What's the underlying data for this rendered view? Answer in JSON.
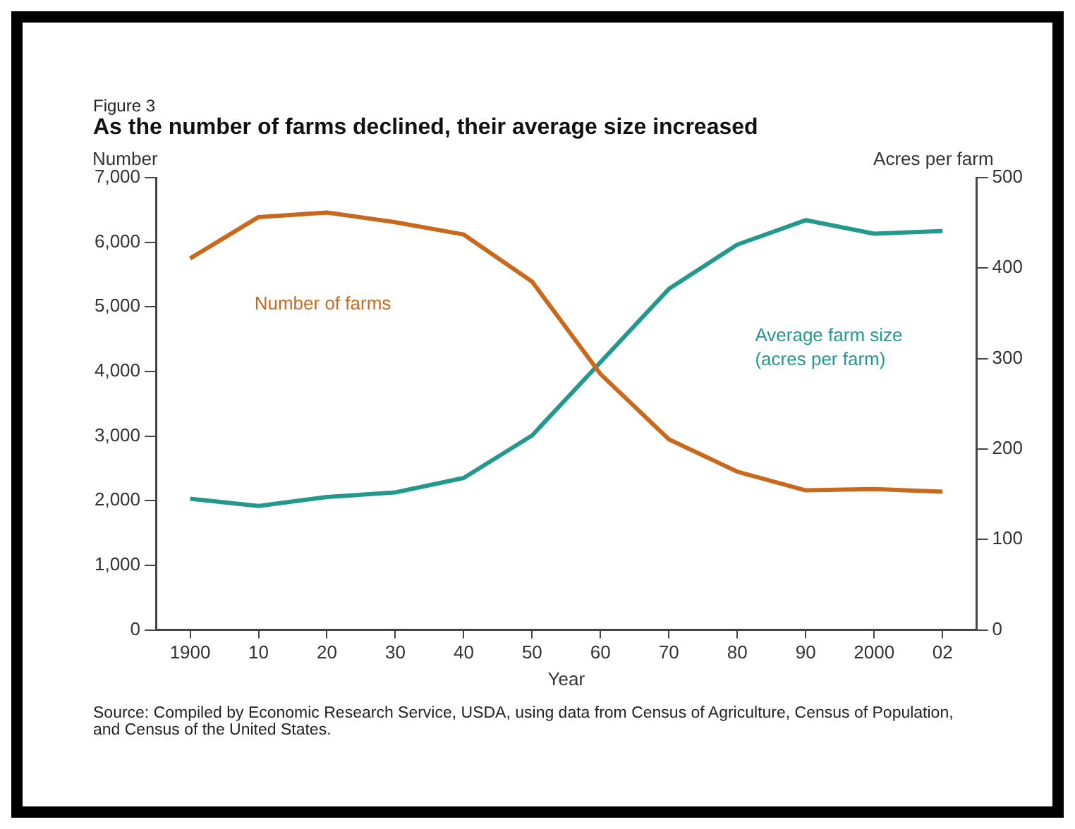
{
  "chart_data": {
    "type": "line",
    "title": "As the number of farms declined, their average size increased",
    "subtitle": "Figure 3",
    "xlabel": "Year",
    "ylabel": "Number",
    "y2label": "Acres per farm",
    "categories": [
      "1900",
      "10",
      "20",
      "30",
      "40",
      "50",
      "60",
      "70",
      "80",
      "90",
      "2000",
      "02"
    ],
    "series": [
      {
        "name": "Number of farms",
        "color": "#c8691c",
        "values": [
          5750,
          6390,
          6460,
          6310,
          6120,
          5390,
          3960,
          2950,
          2450,
          2160,
          2180,
          2140
        ]
      },
      {
        "name": "Average farm size (acres per farm)",
        "color": "#23998e",
        "axis": "y2",
        "values": [
          145,
          137,
          147,
          152,
          168,
          215,
          296,
          377,
          426,
          453,
          438,
          441
        ]
      }
    ],
    "ylim": [
      0,
      7000
    ],
    "yticks": [
      {
        "value": 0,
        "label": "0"
      },
      {
        "value": 1000,
        "label": "1,000"
      },
      {
        "value": 2000,
        "label": "2,000"
      },
      {
        "value": 3000,
        "label": "3,000"
      },
      {
        "value": 4000,
        "label": "4,000"
      },
      {
        "value": 5000,
        "label": "5,000"
      },
      {
        "value": 6000,
        "label": "6,000"
      },
      {
        "value": 7000,
        "label": "7,000"
      }
    ],
    "y2lim": [
      0,
      500
    ],
    "y2ticks": [
      0,
      100,
      200,
      300,
      400,
      500
    ],
    "grid": false,
    "legend": false,
    "marker": "none",
    "line_style": "solid",
    "annotations": [
      "Source: Compiled by Economic Research Service, USDA, using data from Census of Agriculture, Census of Population, and Census of the United States."
    ]
  }
}
